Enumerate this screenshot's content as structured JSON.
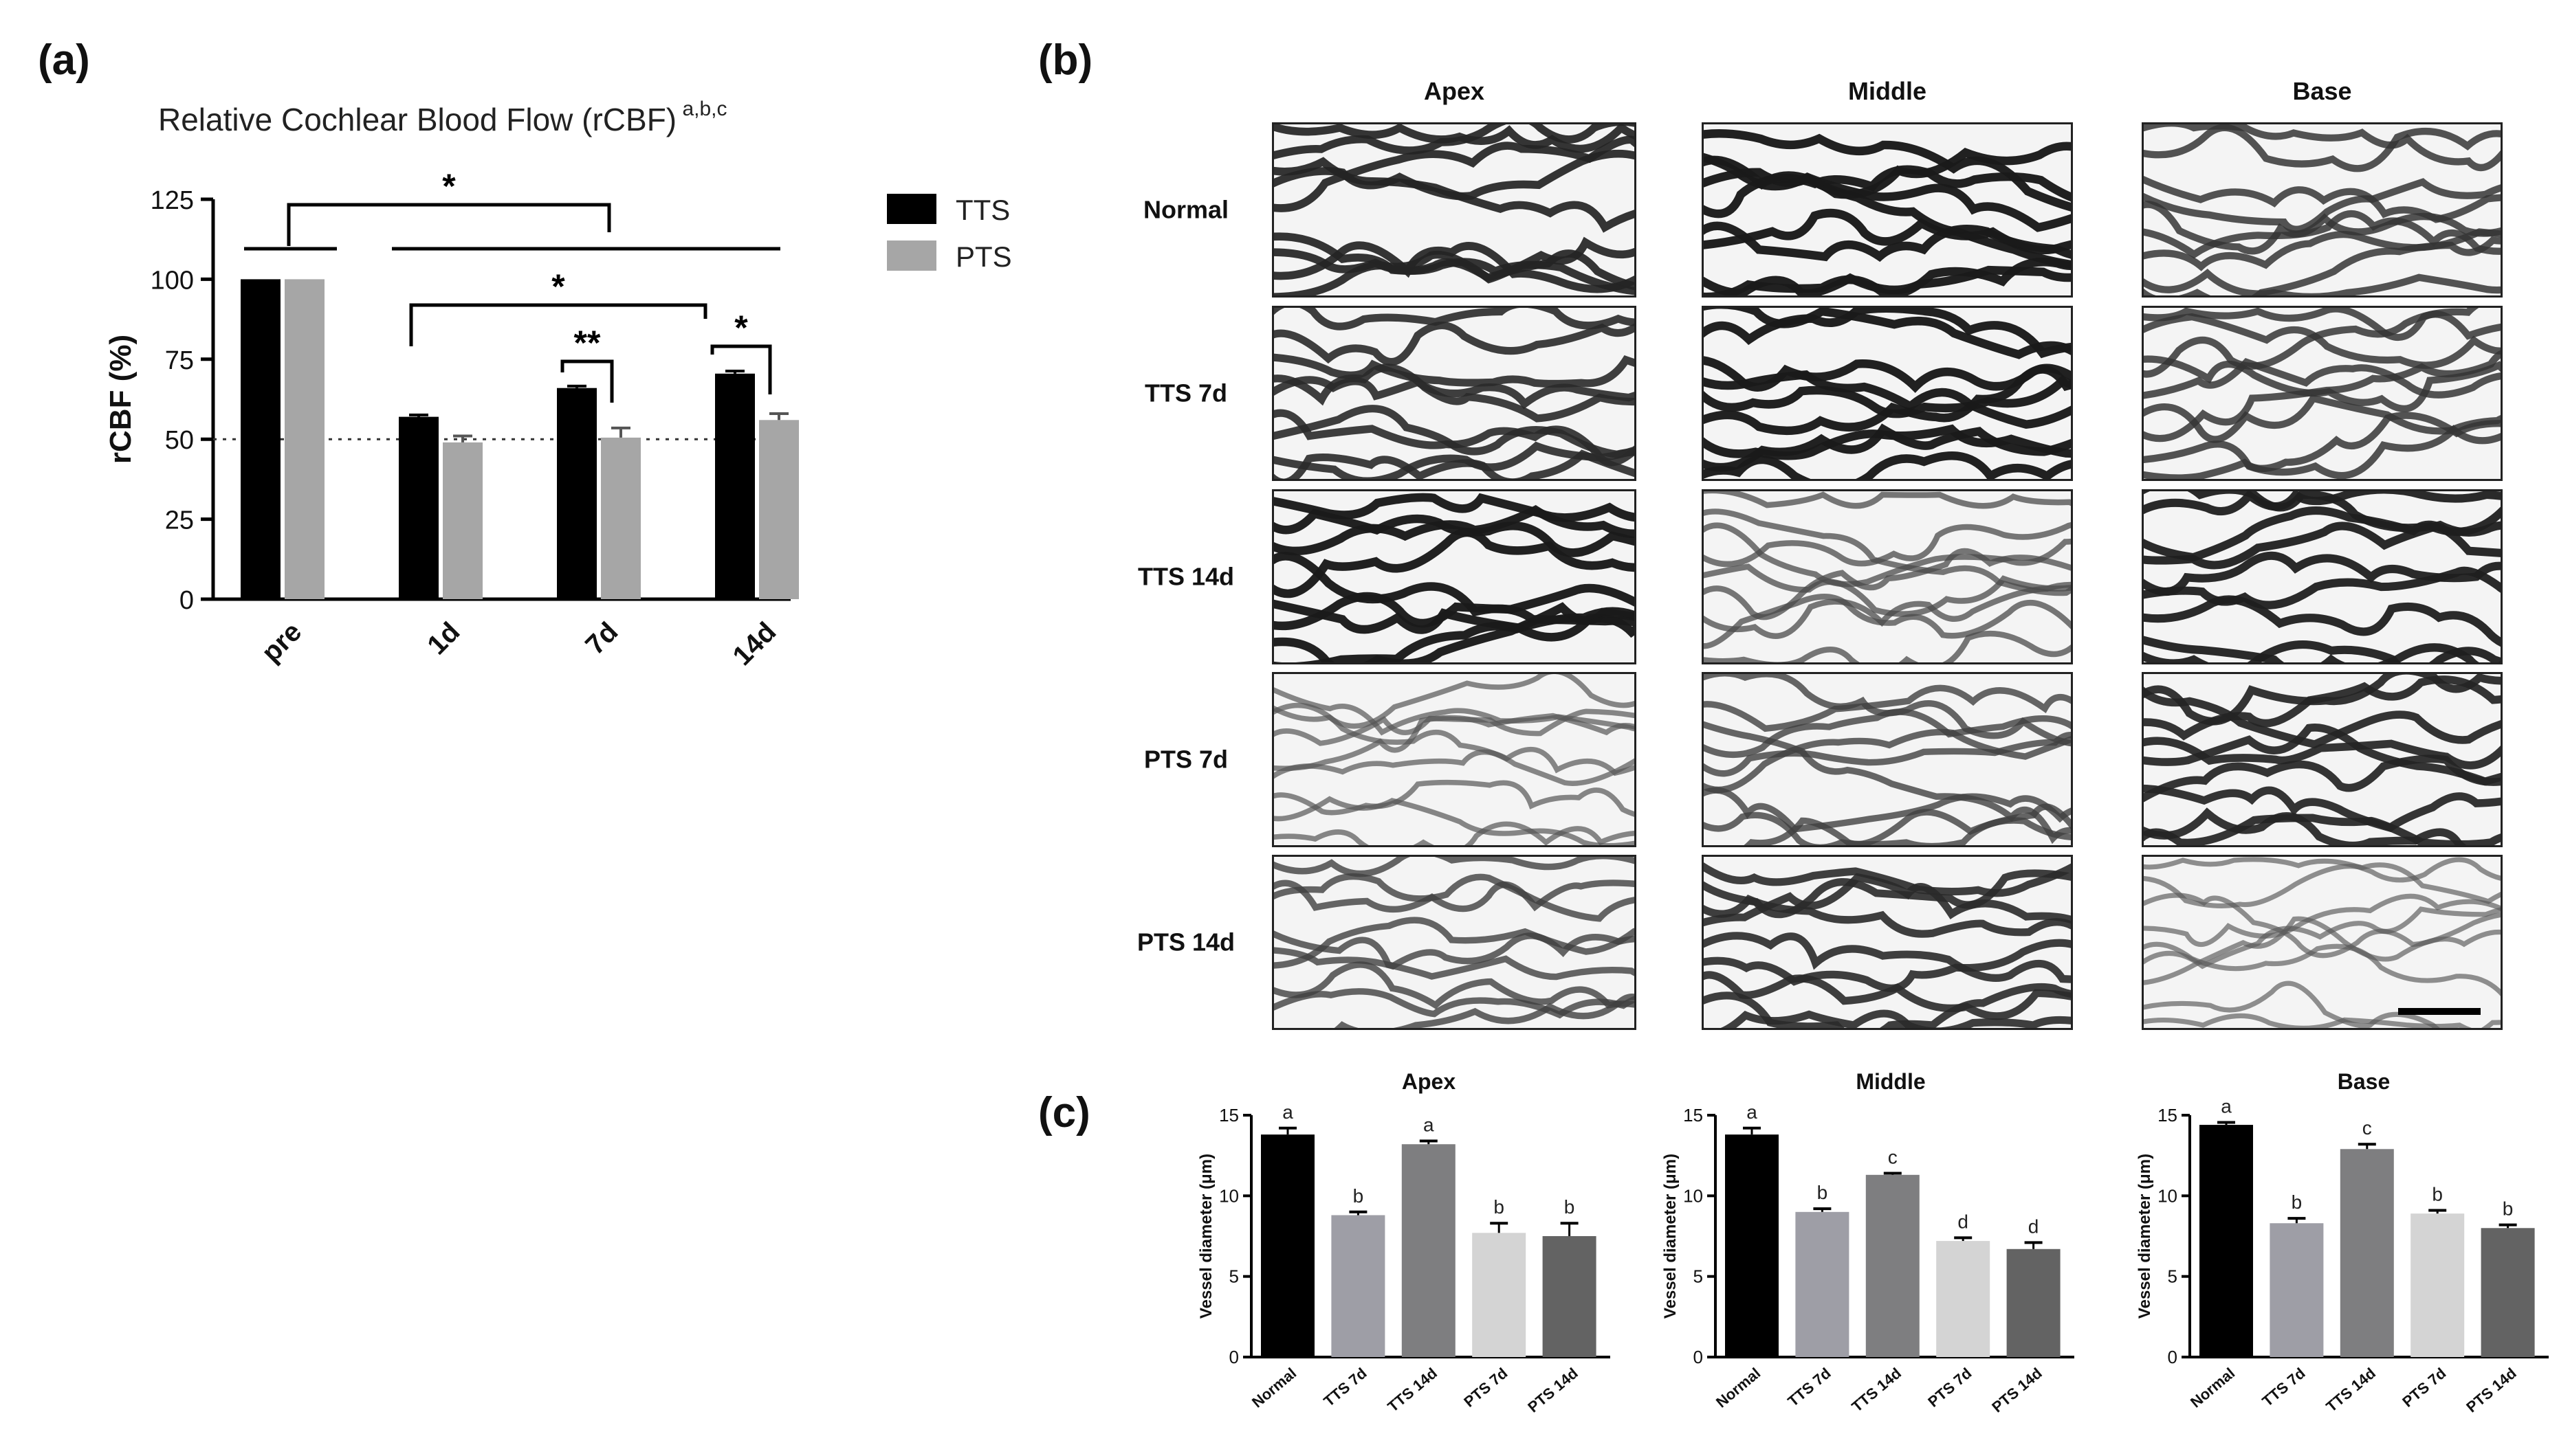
{
  "panels": {
    "a": {
      "letter": "(a)"
    },
    "b": {
      "letter": "(b)"
    },
    "c": {
      "letter": "(c)"
    }
  },
  "chart_data": [
    {
      "id": "a",
      "type": "bar",
      "title": "Relative Cochlear Blood Flow (rCBF)",
      "title_superscript": "a,b,c",
      "xlabel": "",
      "ylabel": "rCBF (%)",
      "categories": [
        "pre",
        "1d",
        "7d",
        "14d"
      ],
      "series": [
        {
          "name": "TTS",
          "color": "#000000",
          "values": [
            100,
            57,
            66,
            70.5
          ],
          "errors": [
            0.3,
            0.6,
            0.6,
            0.8
          ]
        },
        {
          "name": "PTS",
          "color": "#a6a6a6",
          "values": [
            100,
            49,
            50.5,
            56
          ],
          "errors": [
            0.4,
            2,
            3,
            2
          ]
        }
      ],
      "ylim": [
        0,
        125
      ],
      "yticks": [
        0,
        25,
        50,
        75,
        100,
        125
      ],
      "reference_line": 50,
      "legend_position": "right",
      "annotations": [
        "*",
        "*",
        "**",
        "*"
      ]
    },
    {
      "id": "c-apex",
      "type": "bar",
      "title": "Apex",
      "ylabel": "Vessel diameter (μm)",
      "categories": [
        "Normal",
        "TTS 7d",
        "TTS 14d",
        "PTS 7d",
        "PTS 14d"
      ],
      "values": [
        13.8,
        8.8,
        13.2,
        7.7,
        7.5
      ],
      "errors": [
        0.4,
        0.2,
        0.2,
        0.6,
        0.8
      ],
      "letters": [
        "a",
        "b",
        "a",
        "b",
        "b"
      ],
      "ylim": [
        0,
        15
      ],
      "yticks": [
        0,
        5,
        10,
        15
      ]
    },
    {
      "id": "c-middle",
      "type": "bar",
      "title": "Middle",
      "ylabel": "Vessel diameter (μm)",
      "categories": [
        "Normal",
        "TTS 7d",
        "TTS 14d",
        "PTS 7d",
        "PTS 14d"
      ],
      "values": [
        13.8,
        9.0,
        11.3,
        7.2,
        6.7
      ],
      "errors": [
        0.4,
        0.2,
        0.1,
        0.2,
        0.4
      ],
      "letters": [
        "a",
        "b",
        "c",
        "d",
        "d"
      ],
      "ylim": [
        0,
        15
      ],
      "yticks": [
        0,
        5,
        10,
        15
      ]
    },
    {
      "id": "c-base",
      "type": "bar",
      "title": "Base",
      "ylabel": "Vessel diameter (μm)",
      "categories": [
        "Normal",
        "TTS 7d",
        "TTS 14d",
        "PTS 7d",
        "PTS 14d"
      ],
      "values": [
        14.4,
        8.3,
        12.9,
        8.9,
        8.0
      ],
      "errors": [
        0.15,
        0.3,
        0.3,
        0.2,
        0.2
      ],
      "letters": [
        "a",
        "b",
        "c",
        "b",
        "b"
      ],
      "ylim": [
        0,
        15
      ],
      "yticks": [
        0,
        5,
        10,
        15
      ]
    }
  ],
  "micrographs": {
    "columns": [
      "Apex",
      "Middle",
      "Base"
    ],
    "rows": [
      "Normal",
      "TTS 7d",
      "TTS 14d",
      "PTS 7d",
      "PTS 14d"
    ]
  }
}
